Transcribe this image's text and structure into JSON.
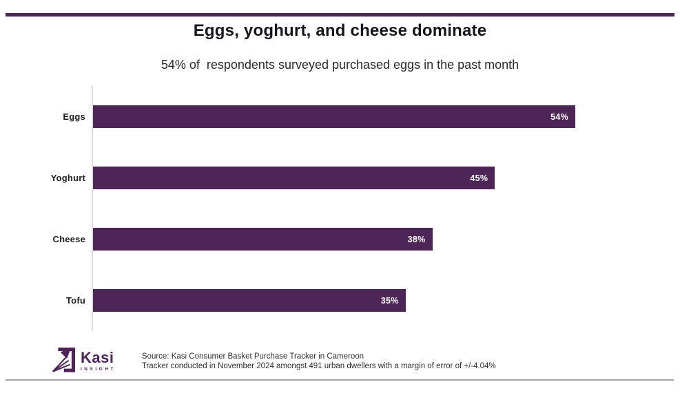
{
  "accent_color": "#4e2557",
  "chart_data": {
    "type": "bar",
    "orientation": "horizontal",
    "title": "Eggs, yoghurt, and cheese dominate",
    "subtitle": "54% of  respondents surveyed purchased eggs in the past month",
    "categories": [
      "Eggs",
      "Yoghurt",
      "Cheese",
      "Tofu"
    ],
    "values": [
      54,
      45,
      38,
      35
    ],
    "value_labels": [
      "54%",
      "45%",
      "38%",
      "35%"
    ],
    "bar_color": "#4e2557",
    "xlim": [
      0,
      65
    ],
    "grid": false,
    "legend": "none",
    "value_label_position": "inside-end",
    "axis_line_color": "#dcdcdc"
  },
  "footer": {
    "logo": {
      "brand": "Kasi",
      "tagline": "INSIGHT",
      "icon": "arrow-up-right-icon"
    },
    "source_line1": "Source: Kasi Consumer Basket Purchase Tracker in Cameroon",
    "source_line2": "Tracker conducted in November 2024 amongst 491 urban dwellers with a margin of error of +/-4.04%"
  }
}
